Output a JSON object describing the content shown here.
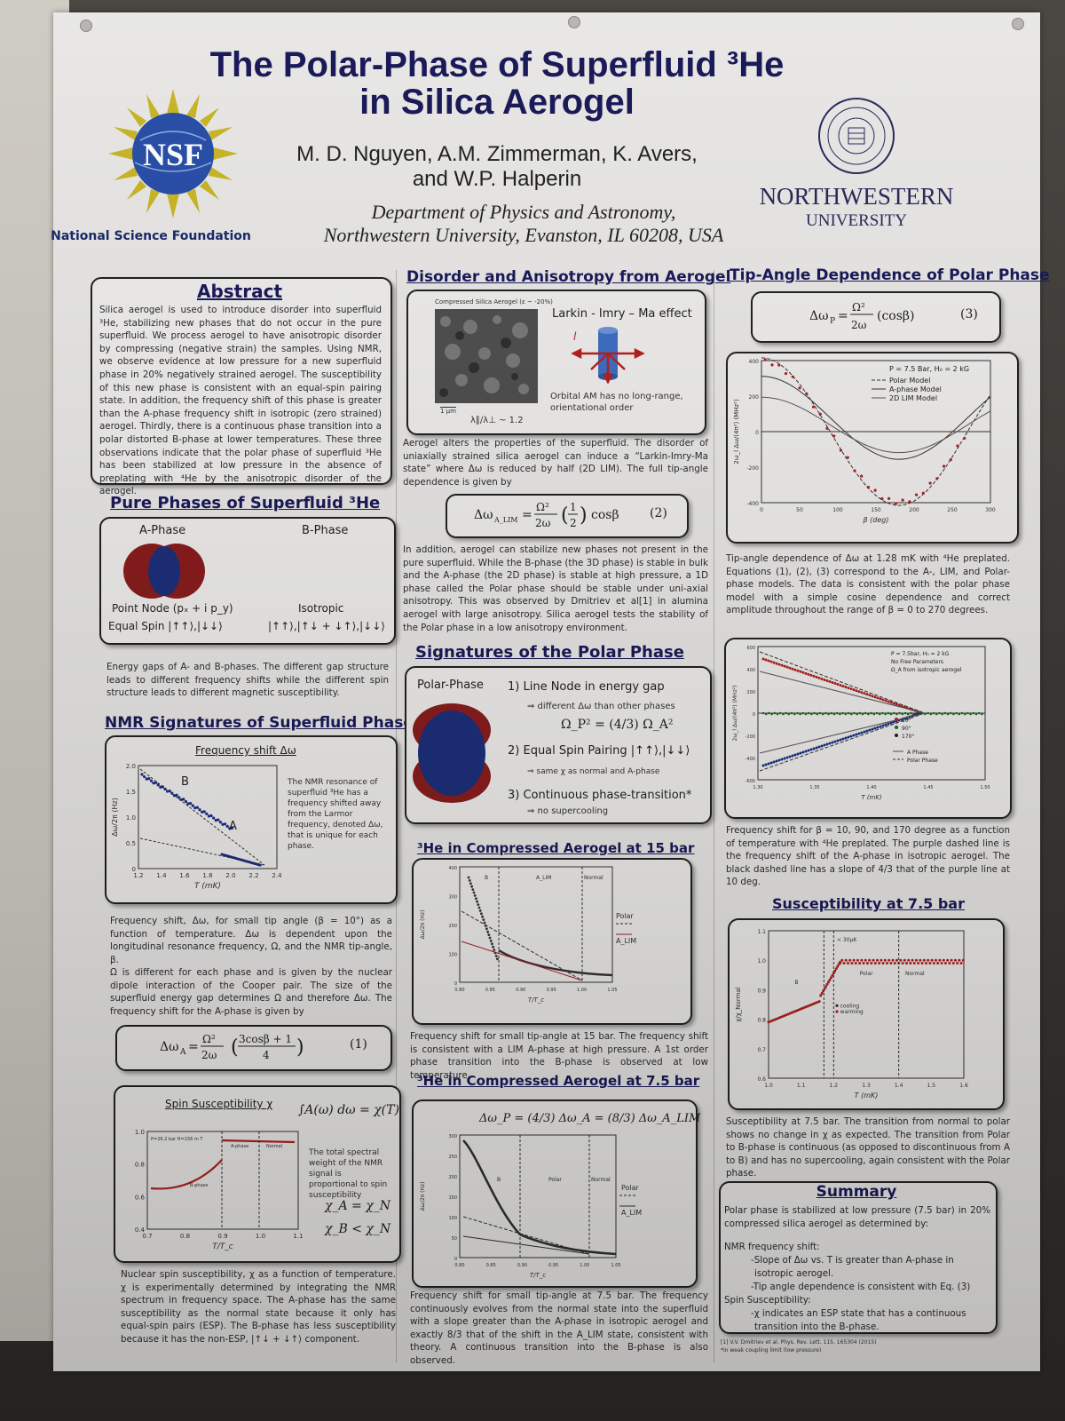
{
  "header": {
    "title_line1": "The Polar-Phase of Superfluid ³He",
    "title_line2": "in Silica Aerogel",
    "authors_line1": "M. D. Nguyen, A.M. Zimmerman, K. Avers,",
    "authors_line2": "and W.P. Halperin",
    "dept_line1": "Department of Physics and Astronomy,",
    "dept_line2": "Northwestern University, Evanston, IL 60208, USA",
    "nsf_logo_text": "NSF",
    "nsf_label": "National Science Foundation",
    "nu_name": "NORTHWESTERN",
    "nu_sub": "UNIVERSITY"
  },
  "abstract": {
    "heading": "Abstract",
    "text": "Silica aerogel is used to introduce disorder into superfluid ³He, stabilizing new phases that do not occur in the pure superfluid. We process aerogel to have anisotropic disorder by compressing (negative strain) the samples. Using NMR, we observe evidence at low pressure for a new superfluid phase in 20% negatively strained aerogel. The susceptibility of this new phase is consistent with an equal-spin pairing state. In addition, the frequency shift of this phase is greater than the A-phase frequency shift in isotropic (zero strained) aerogel. Thirdly, there is a continuous phase transition into a polar distorted B-phase at lower temperatures. These three observations indicate that the polar phase of superfluid ³He has been stabilized at low pressure in the absence of preplating with ⁴He by the anisotropic disorder of the aerogel."
  },
  "pure_phases": {
    "heading": "Pure Phases of Superfluid ³He",
    "a_label": "A-Phase",
    "b_label": "B-Phase",
    "a_node": "Point Node (pₓ + i p_y)",
    "b_node": "Isotropic",
    "a_spin": "Equal Spin |↑↑⟩,|↓↓⟩",
    "b_spin": "|↑↑⟩,|↑↓ + ↓↑⟩,|↓↓⟩",
    "caption": "Energy gaps of A- and B-phases. The different gap structure leads to different frequency shifts while the different spin structure leads to different magnetic susceptibility."
  },
  "nmr": {
    "heading": "NMR Signatures of Superfluid Phases",
    "box_title": "Frequency shift Δω",
    "side_text": "The NMR resonance of superfluid ³He has a frequency shifted away from the Larmor frequency, denoted Δω, that is unique for each phase.",
    "ylabel": "Δω/2π (Hz)",
    "xlabel": "T (mK)",
    "xticks": [
      "1.2",
      "1.4",
      "1.6",
      "1.8",
      "2.0",
      "2.2",
      "2.4"
    ],
    "yticks": [
      "0",
      "0.5",
      "1.0",
      "1.5",
      "2.0"
    ],
    "label_B": "B",
    "label_A": "A",
    "caption1": "Frequency shift, Δω, for small tip angle (β = 10°) as a function of temperature. Δω is dependent upon the longitudinal resonance frequency, Ω, and the NMR tip-angle, β.",
    "caption2": "Ω is different for each phase and is given by the nuclear dipole interaction of the Cooper pair. The size of the superfluid energy gap determines Ω and therefore Δω. The frequency shift for the A-phase is given by",
    "eq1": "Δω_A = (Ω_A² / 2ω_l) ((3cosβ + 1) / 4)",
    "eq1_num": "(1)"
  },
  "spin": {
    "box_title": "Spin Susceptibility χ",
    "integral": "∫A(ω) dω = χ(T)",
    "side_text": "The total spectral weight of the NMR signal is proportional to spin susceptibility",
    "rel1": "χ_A = χ_N",
    "rel2": "χ_B < χ_N",
    "xlabel": "T/T_c",
    "xticks": [
      "0.7",
      "0.8",
      "0.9",
      "1.0",
      "1.1"
    ],
    "yticks": [
      "0.4",
      "0.6",
      "0.8",
      "1.0"
    ],
    "inner_label": "P=26.2 bar H=156 m T",
    "region_a": "A-phase",
    "region_n": "Normal",
    "region_b": "B-phase",
    "caption": "Nuclear spin susceptibility, χ as a function of temperature. χ is experimentally determined by integrating the NMR spectrum in frequency space. The A-phase has the same susceptibility as the normal state because it only has equal-spin pairs (ESP). The B-phase has less susceptibility because it has the non-ESP, |↑↓ + ↓↑⟩ component."
  },
  "disorder": {
    "heading": "Disorder and Anisotropy from Aerogel",
    "img_caption": "Compressed Silica Aerogel (ε ~ -20%)",
    "scale": "1 μm",
    "lambda": "λ∥/λ⊥ ~ 1.2",
    "lim_title": "Larkin - Imry – Ma effect",
    "lim_vec": "l",
    "lim_note": "Orbital AM has no long-range, orientational order",
    "text1": "Aerogel alters the properties of the superfluid. The disorder of uniaxially strained silica aerogel can induce a “Larkin-Imry-Ma state” where Δω is reduced by half (2D LIM). The full tip-angle dependence is given by",
    "eq2": "Δω_A_LIM = (Ω_A² / 2ω_l)(1/2) cosβ",
    "eq2_num": "(2)",
    "text2": "In addition, aerogel can stabilize new phases not present in the pure superfluid. While the B-phase (the 3D phase) is stable in bulk and the A-phase (the 2D phase) is stable at high pressure, a 1D phase called the Polar phase should be stable under uni-axial anisotropy. This was observed by Dmitriev et al[1] in alumina aerogel with large anisotropy. Silica aerogel tests the stability of the Polar phase in a low anisotropy environment."
  },
  "signatures": {
    "heading": "Signatures of the Polar Phase",
    "phase_label": "Polar-Phase",
    "item1": "1) Line Node in energy gap",
    "item1_sub": "⇒ different Δω than other phases",
    "item1_eq": "Ω_P² = (4/3) Ω_A²",
    "item2": "2) Equal Spin Pairing |↑↑⟩,|↓↓⟩",
    "item2_sub": "⇒ same χ as normal and A-phase",
    "item3": "3) Continuous phase-transition*",
    "item3_sub": "⇒ no supercooling"
  },
  "comp15": {
    "heading": "³He in Compressed Aerogel at 15 bar",
    "ylabel": "Δω/2π (Hz)",
    "xlabel": "T/T_c",
    "xticks": [
      "0.80",
      "0.85",
      "0.90",
      "0.95",
      "1.00",
      "1.05"
    ],
    "yticks": [
      "0",
      "100",
      "200",
      "300",
      "400"
    ],
    "region_b": "B",
    "region_lim": "A_LIM",
    "region_n": "Normal",
    "legend_polar": "Polar",
    "legend_alim": "A_LIM",
    "caption": "Frequency shift for small tip-angle at 15 bar. The frequency shift is consistent with a LIM A-phase at high pressure. A 1st order phase transition into the B-phase is observed at low temperature."
  },
  "comp75": {
    "heading": "³He in Compressed Aerogel at 7.5 bar",
    "eq": "Δω_P = (4/3) Δω_A = (8/3) Δω_A_LIM",
    "ylabel": "Δω/2π (Hz)",
    "xlabel": "T/T_c",
    "xticks": [
      "0.80",
      "0.85",
      "0.90",
      "0.95",
      "1.00",
      "1.05"
    ],
    "yticks": [
      "0",
      "50",
      "100",
      "150",
      "200",
      "250",
      "300"
    ],
    "region_b": "B",
    "region_p": "Polar",
    "region_n": "Normal",
    "legend_polar": "Polar",
    "legend_alim": "A_LIM",
    "caption": "Frequency shift for small tip-angle at 7.5 bar. The frequency continuously evolves from the normal state into the superfluid with a slope greater than the A-phase in isotropic aerogel and exactly 8/3 that of the shift in the A_LIM state, consistent with theory. A continuous transition into the B-phase is also observed."
  },
  "tip": {
    "heading": "Tip-Angle Dependence of Polar Phase",
    "eq3": "Δω_P = (Ω_P² / 2ω_l)(cosβ)",
    "eq3_num": "(3)",
    "ylabel": "2ω_l Δω/(4π²) (MHz²)",
    "xlabel": "β (deg)",
    "xticks": [
      "0",
      "50",
      "100",
      "150",
      "200",
      "250",
      "300"
    ],
    "yticks": [
      "-400",
      "-200",
      "0",
      "200",
      "400"
    ],
    "legend_title": "P = 7.5 Bar, H₀ = 2 kG",
    "legend_1": "Polar Model",
    "legend_2": "A-phase Model",
    "legend_3": "2D LIM Model",
    "caption": "Tip-angle dependence of Δω at 1.28 mK with ⁴He preplated. Equations (1), (2), (3) correspond to the A-, LIM, and Polar-phase models. The data is consistent with the polar phase model with a simple cosine dependence and correct amplitude throughout the range of β = 0 to 270 degrees."
  },
  "freqT": {
    "ylabel": "2ω_l Δω/(4π²) (MHz²)",
    "xlabel": "T (mK)",
    "xticks": [
      "1.30",
      "1.35",
      "1.40",
      "1.45",
      "1.50"
    ],
    "yticks": [
      "-600",
      "-400",
      "-200",
      "0",
      "200",
      "400",
      "600"
    ],
    "legend_title": "P = 7.5bar, H₀ = 2 kG",
    "legend_sub1": "No Free Parameters",
    "legend_sub2": "Ω_A from isotropic aerogel",
    "legend_10": "10°",
    "legend_90": "90°",
    "legend_170": "170°",
    "legend_aphase": "A Phase",
    "legend_polar": "Polar Phase",
    "caption": "Frequency shift for β = 10, 90, and 170 degree as a function of temperature with ⁴He preplated. The purple dashed line is the frequency shift of the A-phase in isotropic aerogel. The black dashed line has a slope of 4/3 that of the purple line at 10 deg."
  },
  "susc": {
    "heading": "Susceptibility at 7.5 bar",
    "ylabel": "χ/χ_Normal",
    "xlabel": "T (mK)",
    "xticks": [
      "1.0",
      "1.1",
      "1.2",
      "1.3",
      "1.4",
      "1.5",
      "1.6"
    ],
    "yticks": [
      "0.6",
      "0.7",
      "0.8",
      "0.9",
      "1.0",
      "1.1"
    ],
    "region_b": "B",
    "region_p": "Polar",
    "region_n": "Normal",
    "gap_label": "< 30μK",
    "leg_cool": "cooling",
    "leg_warm": "warming",
    "caption": "Susceptibility at 7.5 bar. The transition from normal to polar shows no change in χ as expected. The transition from Polar to B-phase is continuous (as opposed to discontinuous from A to B) and has no supercooling, again consistent with the Polar phase."
  },
  "summary": {
    "heading": "Summary",
    "lead": "Polar phase is stabilized at low pressure (7.5 bar) in 20% compressed silica aerogel as determined by:",
    "l1": "NMR frequency shift:",
    "l2": "-Slope of Δω vs. T is greater than A-phase in",
    "l3": "isotropic aerogel.",
    "l4": "-Tip angle dependence is consistent with Eq. (3)",
    "l5": "Spin Susceptibility:",
    "l6": "-χ indicates an ESP state that has a continuous",
    "l7": "transition into the B-phase.",
    "ref": "[1] V.V. Dmitriev et al. Phys. Rev. Lett. 115, 165304 (2015)",
    "note": "*in weak coupling limit (low pressure)"
  },
  "colors": {
    "heading": "#1b1a5a",
    "red_series": "#b32020",
    "blue_series": "#1a2e86",
    "green_series": "#1c6a1c"
  }
}
